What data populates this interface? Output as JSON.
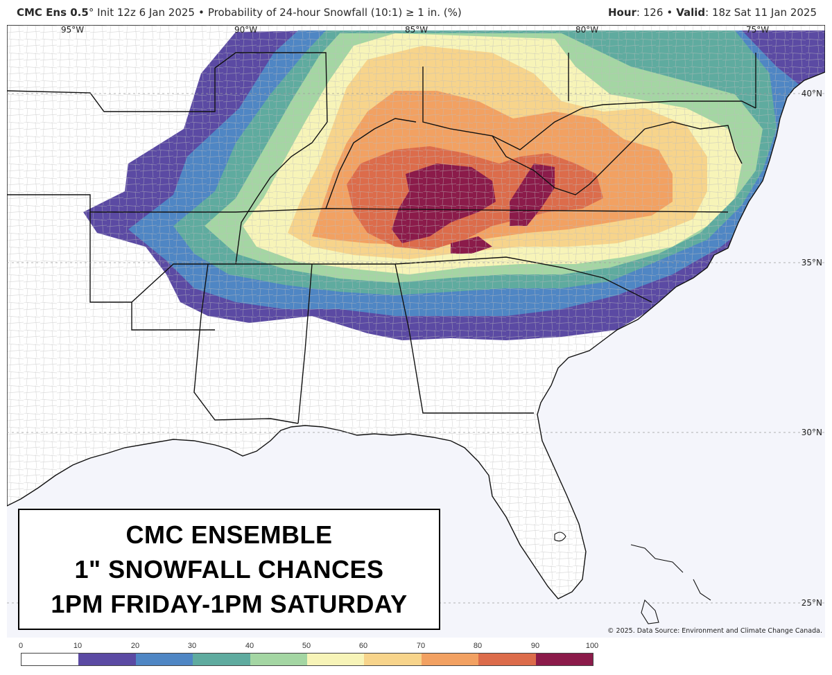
{
  "header": {
    "model": "CMC Ens 0.5",
    "degree": "°",
    "init": "Init 12z 6 Jan 2025",
    "bullet": "•",
    "product": "Probability of 24-hour Snowfall (10:1) ≥ 1 in. (%)",
    "hour_label": "Hour",
    "hour_value": ": 126",
    "valid_label": "Valid",
    "valid_value": ": 18z Sat 11 Jan 2025"
  },
  "map": {
    "longitude_labels": [
      "95°W",
      "90°W",
      "85°W",
      "80°W",
      "75°W"
    ],
    "latitude_labels": [
      "40°N",
      "35°N",
      "30°N",
      "25°N"
    ],
    "credit": "© 2025. Data Source: Environment and Climate Change Canada.",
    "colors": {
      "land": "#ffffff",
      "ocean": "#f4f5fb",
      "borders": "#111111",
      "counties": "#b9b9b9"
    }
  },
  "overlay": {
    "line1": "CMC ENSEMBLE",
    "line2": "1\" SNOWFALL CHANCES",
    "line3": "1PM FRIDAY-1PM SATURDAY"
  },
  "legend": {
    "ticks": [
      "0",
      "10",
      "20",
      "30",
      "40",
      "50",
      "60",
      "70",
      "80",
      "90",
      "100"
    ],
    "colors": [
      "#ffffff",
      "#5b4aa3",
      "#4f86c4",
      "#5fab9f",
      "#a4d6a3",
      "#f7f4b8",
      "#f7d48b",
      "#f2a162",
      "#dc6c4b",
      "#8b1b4a"
    ]
  }
}
